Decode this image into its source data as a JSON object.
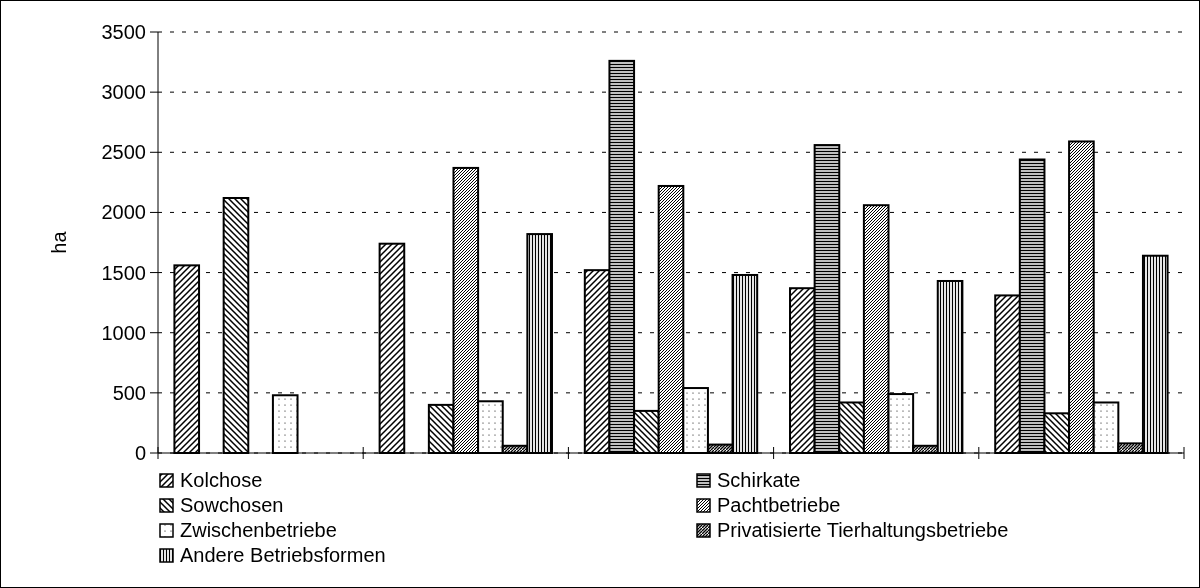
{
  "chart_data": {
    "type": "bar",
    "ylabel": "ha",
    "categories": [
      null,
      null,
      null,
      null,
      null
    ],
    "series": [
      {
        "name": "Kolchose",
        "color": "#000000",
        "values": [
          1560,
          1740,
          1520,
          1370,
          1310
        ]
      },
      {
        "name": "Schirkate",
        "color": "#000000",
        "values": [
          null,
          null,
          3260,
          2560,
          2440
        ]
      },
      {
        "name": "Sowchosen",
        "color": "#000000",
        "values": [
          2120,
          400,
          350,
          420,
          330
        ]
      },
      {
        "name": "Pachtbetriebe",
        "color": "#000000",
        "values": [
          null,
          2370,
          2220,
          2060,
          2590
        ]
      },
      {
        "name": "Zwischenbetriebe",
        "color": "#000000",
        "values": [
          480,
          430,
          540,
          490,
          420
        ]
      },
      {
        "name": "Privatisierte Tierhaltungsbetriebe",
        "color": "#000000",
        "values": [
          null,
          60,
          70,
          60,
          80
        ]
      },
      {
        "name": "Andere Betriebsformen",
        "color": "#000000",
        "values": [
          null,
          1820,
          1480,
          1430,
          1640
        ]
      }
    ],
    "ylim": [
      0,
      3500
    ],
    "yticks": [
      0,
      500,
      1000,
      1500,
      2000,
      2500,
      3000,
      3500
    ],
    "grid": "y",
    "legend": "bottom"
  }
}
